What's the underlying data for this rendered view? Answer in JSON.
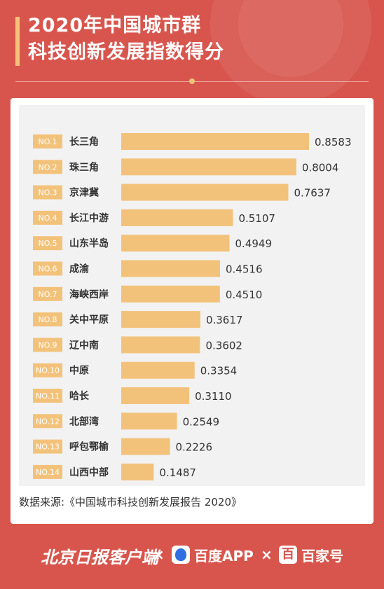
{
  "header": {
    "title_line1": "2020年中国城市群",
    "title_line2": "科技创新发展指数得分"
  },
  "source": "数据来源:《中国城市科技创新发展报告 2020》",
  "footer": {
    "brand1": "北京日报客户端",
    "times": "×",
    "brand2": "百度APP",
    "brand3_icon": "百",
    "brand3": "百家号"
  },
  "colors": {
    "background": "#d8554d",
    "bar": "#f3c27a",
    "badge": "#f3c27a",
    "text": "#333333"
  },
  "chart_data": {
    "type": "bar",
    "orientation": "horizontal",
    "ranks": [
      "NO.1",
      "NO.2",
      "NO.3",
      "NO.4",
      "NO.5",
      "NO.6",
      "NO.7",
      "NO.8",
      "NO.9",
      "NO.10",
      "NO.11",
      "NO.12",
      "NO.13",
      "NO.14"
    ],
    "categories": [
      "长三角",
      "珠三角",
      "京津冀",
      "长江中游",
      "山东半岛",
      "成渝",
      "海峡西岸",
      "关中平原",
      "辽中南",
      "中原",
      "哈长",
      "北部湾",
      "呼包鄂榆",
      "山西中部"
    ],
    "values": [
      0.8583,
      0.8004,
      0.7637,
      0.5107,
      0.4949,
      0.4516,
      0.451,
      0.3617,
      0.3602,
      0.3354,
      0.311,
      0.2549,
      0.2226,
      0.1487
    ],
    "labels": [
      "0.8583",
      "0.8004",
      "0.7637",
      "0.5107",
      "0.4949",
      "0.4516",
      "0.4510",
      "0.3617",
      "0.3602",
      "0.3354",
      "0.3110",
      "0.2549",
      "0.2226",
      "0.1487"
    ],
    "title": "",
    "xlabel": "",
    "ylabel": "",
    "xlim": [
      0,
      0.8583
    ],
    "grid": false,
    "legend": "none"
  }
}
